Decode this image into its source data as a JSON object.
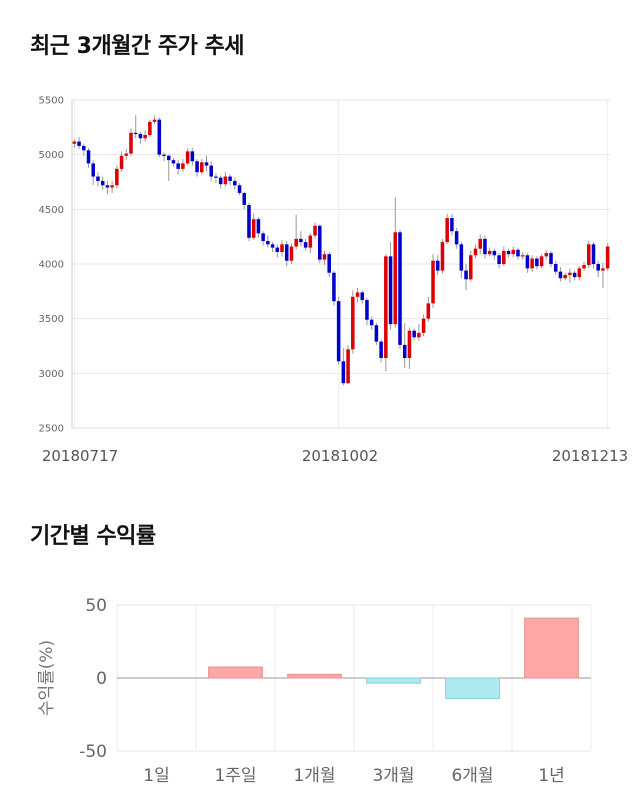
{
  "sections": {
    "price_title": "최근 3개월간 주가 추세",
    "return_title": "기간별 수익률"
  },
  "chart_data": [
    {
      "type": "candlestick",
      "title": "최근 3개월간 주가 추세",
      "ylim": [
        2500,
        5500
      ],
      "yticks": [
        2500,
        3000,
        3500,
        4000,
        4500,
        5000,
        5500
      ],
      "xtick_labels": [
        "20180717",
        "20181002",
        "20181213"
      ],
      "grid": true,
      "colors": {
        "up": "#dd0000",
        "down": "#0000cc",
        "wick": "#999999"
      },
      "candles": [
        [
          5100,
          5120,
          5060,
          5140
        ],
        [
          5120,
          5080,
          5050,
          5160
        ],
        [
          5080,
          5040,
          4990,
          5100
        ],
        [
          5040,
          4920,
          4880,
          5060
        ],
        [
          4920,
          4800,
          4720,
          4950
        ],
        [
          4800,
          4760,
          4710,
          4840
        ],
        [
          4760,
          4720,
          4680,
          4800
        ],
        [
          4720,
          4700,
          4640,
          4760
        ],
        [
          4700,
          4720,
          4650,
          4760
        ],
        [
          4720,
          4870,
          4690,
          4900
        ],
        [
          4870,
          4990,
          4840,
          5030
        ],
        [
          4990,
          5010,
          4950,
          5050
        ],
        [
          5010,
          5200,
          4990,
          5240
        ],
        [
          5200,
          5190,
          5150,
          5360
        ],
        [
          5190,
          5150,
          5100,
          5210
        ],
        [
          5150,
          5180,
          5120,
          5220
        ],
        [
          5180,
          5300,
          5160,
          5320
        ],
        [
          5300,
          5320,
          5280,
          5360
        ],
        [
          5320,
          5000,
          4980,
          5340
        ],
        [
          5000,
          4990,
          4940,
          5020
        ],
        [
          4990,
          4950,
          4760,
          5000
        ],
        [
          4950,
          4920,
          4890,
          4970
        ],
        [
          4920,
          4870,
          4820,
          4950
        ],
        [
          4870,
          4920,
          4840,
          4960
        ],
        [
          4920,
          5030,
          4900,
          5060
        ],
        [
          5030,
          4940,
          4900,
          5060
        ],
        [
          4940,
          4840,
          4800,
          4960
        ],
        [
          4840,
          4930,
          4820,
          4960
        ],
        [
          4930,
          4900,
          4850,
          4990
        ],
        [
          4900,
          4800,
          4760,
          4940
        ],
        [
          4800,
          4790,
          4740,
          4830
        ],
        [
          4790,
          4730,
          4690,
          4810
        ],
        [
          4730,
          4800,
          4710,
          4840
        ],
        [
          4800,
          4760,
          4720,
          4820
        ],
        [
          4760,
          4720,
          4680,
          4790
        ],
        [
          4720,
          4650,
          4630,
          4740
        ],
        [
          4650,
          4540,
          4500,
          4660
        ],
        [
          4540,
          4240,
          4210,
          4560
        ],
        [
          4240,
          4410,
          4220,
          4460
        ],
        [
          4410,
          4280,
          4240,
          4430
        ],
        [
          4280,
          4210,
          4170,
          4300
        ],
        [
          4210,
          4180,
          4150,
          4260
        ],
        [
          4180,
          4150,
          4110,
          4200
        ],
        [
          4150,
          4110,
          4060,
          4180
        ],
        [
          4110,
          4180,
          4070,
          4220
        ],
        [
          4180,
          4030,
          3980,
          4210
        ],
        [
          4030,
          4160,
          4000,
          4190
        ],
        [
          4160,
          4230,
          4130,
          4450
        ],
        [
          4230,
          4200,
          4160,
          4300
        ],
        [
          4200,
          4150,
          4120,
          4230
        ],
        [
          4150,
          4260,
          4100,
          4280
        ],
        [
          4260,
          4350,
          4230,
          4380
        ],
        [
          4350,
          4040,
          4010,
          4360
        ],
        [
          4040,
          4090,
          3990,
          4120
        ],
        [
          4090,
          3920,
          3880,
          4110
        ],
        [
          3920,
          3660,
          3620,
          3940
        ],
        [
          3660,
          3110,
          3080,
          3700
        ],
        [
          3110,
          2910,
          2890,
          3230
        ],
        [
          2910,
          3220,
          2900,
          3260
        ],
        [
          3220,
          3700,
          3180,
          3760
        ],
        [
          3700,
          3740,
          3650,
          3780
        ],
        [
          3740,
          3670,
          3630,
          3760
        ],
        [
          3670,
          3490,
          3440,
          3690
        ],
        [
          3490,
          3440,
          3400,
          3520
        ],
        [
          3440,
          3290,
          3260,
          3460
        ],
        [
          3290,
          3140,
          3100,
          3310
        ],
        [
          3140,
          4070,
          3020,
          4090
        ],
        [
          4070,
          3450,
          3400,
          4200
        ],
        [
          3450,
          4290,
          3420,
          4610
        ],
        [
          4290,
          3260,
          3220,
          4310
        ],
        [
          3260,
          3140,
          3050,
          3460
        ],
        [
          3140,
          3390,
          3040,
          3420
        ],
        [
          3390,
          3330,
          3300,
          3410
        ],
        [
          3330,
          3370,
          3300,
          3450
        ],
        [
          3370,
          3500,
          3340,
          3540
        ],
        [
          3500,
          3640,
          3470,
          3700
        ],
        [
          3640,
          4030,
          3600,
          4090
        ],
        [
          4030,
          3940,
          3900,
          4080
        ],
        [
          3940,
          4200,
          3910,
          4230
        ],
        [
          4200,
          4420,
          4180,
          4460
        ],
        [
          4420,
          4300,
          4260,
          4460
        ],
        [
          4300,
          4180,
          4140,
          4330
        ],
        [
          4180,
          3940,
          3870,
          4200
        ],
        [
          3940,
          3860,
          3760,
          4000
        ],
        [
          3860,
          4080,
          3840,
          4120
        ],
        [
          4080,
          4140,
          4050,
          4180
        ],
        [
          4140,
          4230,
          4090,
          4270
        ],
        [
          4230,
          4090,
          4050,
          4260
        ],
        [
          4090,
          4120,
          4070,
          4150
        ],
        [
          4120,
          4080,
          4040,
          4140
        ],
        [
          4080,
          4000,
          3960,
          4100
        ],
        [
          4000,
          4120,
          3980,
          4160
        ],
        [
          4120,
          4090,
          4060,
          4140
        ],
        [
          4090,
          4130,
          4060,
          4160
        ],
        [
          4130,
          4070,
          4040,
          4150
        ],
        [
          4070,
          4080,
          4040,
          4110
        ],
        [
          4080,
          3960,
          3920,
          4100
        ],
        [
          3960,
          4050,
          3930,
          4080
        ],
        [
          4050,
          3980,
          3950,
          4070
        ],
        [
          3980,
          4070,
          3960,
          4090
        ],
        [
          4070,
          4100,
          4040,
          4130
        ],
        [
          4100,
          4000,
          3970,
          4120
        ],
        [
          4000,
          3930,
          3900,
          4030
        ],
        [
          3930,
          3870,
          3840,
          3970
        ],
        [
          3870,
          3900,
          3850,
          3920
        ],
        [
          3900,
          3920,
          3830,
          3960
        ],
        [
          3920,
          3880,
          3850,
          3940
        ],
        [
          3880,
          3960,
          3850,
          3980
        ],
        [
          3960,
          3990,
          3940,
          4020
        ],
        [
          3990,
          4180,
          3960,
          4210
        ],
        [
          4180,
          4000,
          3960,
          4200
        ],
        [
          4000,
          3940,
          3880,
          4030
        ],
        [
          3940,
          3960,
          3780,
          4010
        ],
        [
          3960,
          4160,
          3940,
          4190
        ]
      ]
    },
    {
      "type": "bar",
      "title": "기간별 수익률",
      "categories": [
        "1일",
        "1주일",
        "1개월",
        "3개월",
        "6개월",
        "1년"
      ],
      "values": [
        0,
        7.5,
        2.5,
        -3.5,
        -14,
        41
      ],
      "ylabel": "수익률(%)",
      "ylim": [
        -50,
        50
      ],
      "yticks": [
        -50,
        0,
        50
      ],
      "grid": true,
      "colors": {
        "positive_fill": "#ffa6a6",
        "positive_stroke": "#e89090",
        "negative_fill": "#aeeaf2",
        "negative_stroke": "#86cfdb"
      }
    }
  ]
}
